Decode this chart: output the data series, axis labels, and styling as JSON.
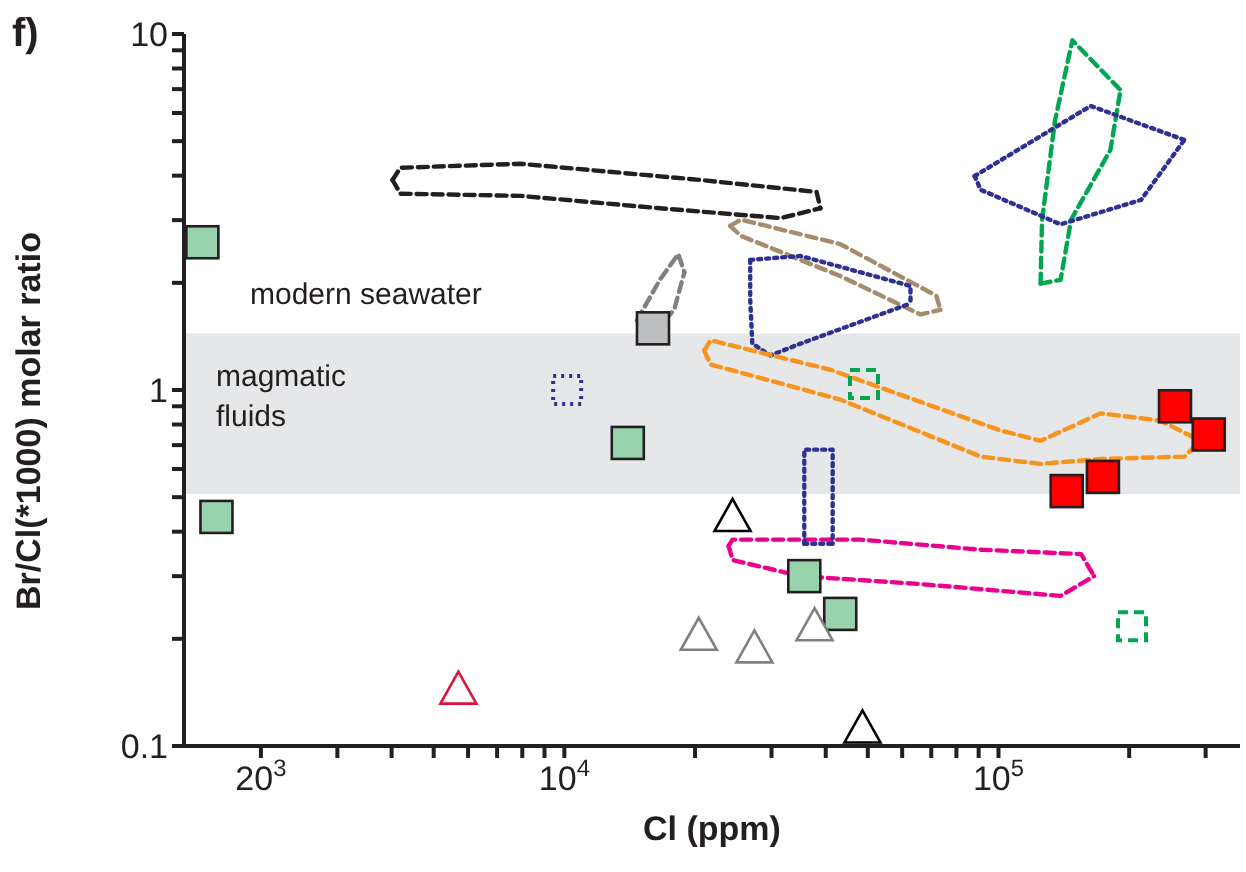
{
  "chart_data": {
    "type": "scatter",
    "title": "f)",
    "xlabel": "Cl (ppm)",
    "ylabel": "Br/Cl(*1000) molar ratio",
    "log": "xy",
    "legend": false,
    "xlim": [
      1330,
      360000
    ],
    "ylim": [
      0.1,
      10
    ],
    "xticks": [
      {
        "value": 2000,
        "label": "20$^{3}$"
      },
      {
        "value": 3000,
        "label": null
      },
      {
        "value": 4000,
        "label": null
      },
      {
        "value": 5000,
        "label": null
      },
      {
        "value": 6000,
        "label": null
      },
      {
        "value": 7000,
        "label": null
      },
      {
        "value": 8000,
        "label": null
      },
      {
        "value": 9000,
        "label": null
      },
      {
        "value": 10000,
        "label": "10$^{4}$"
      },
      {
        "value": 20000,
        "label": null
      },
      {
        "value": 30000,
        "label": null
      },
      {
        "value": 40000,
        "label": null
      },
      {
        "value": 50000,
        "label": null
      },
      {
        "value": 60000,
        "label": null
      },
      {
        "value": 70000,
        "label": null
      },
      {
        "value": 80000,
        "label": null
      },
      {
        "value": 90000,
        "label": null
      },
      {
        "value": 100000,
        "label": "10$^{5}$"
      },
      {
        "value": 200000,
        "label": null
      },
      {
        "value": 300000,
        "label": null
      }
    ],
    "yticks": [
      0.1,
      {
        "value": 0.2,
        "label": null
      },
      {
        "value": 0.3,
        "label": null
      },
      {
        "value": 0.4,
        "label": null
      },
      {
        "value": 0.5,
        "label": null
      },
      {
        "value": 0.6,
        "label": null
      },
      {
        "value": 0.7,
        "label": null
      },
      {
        "value": 0.8,
        "label": null
      },
      {
        "value": 0.9,
        "label": null
      },
      1,
      {
        "value": 2,
        "label": null
      },
      {
        "value": 3,
        "label": null
      },
      {
        "value": 4,
        "label": null
      },
      {
        "value": 5,
        "label": null
      },
      {
        "value": 6,
        "label": null
      },
      {
        "value": 7,
        "label": null
      },
      {
        "value": 8,
        "label": null
      },
      {
        "value": 9,
        "label": null
      },
      10
    ],
    "bands": [
      {
        "axis": "y",
        "from": 0.51,
        "to": 1.44,
        "label": "magmatic fluids",
        "color": "#e6e7e8"
      }
    ],
    "annotations": [
      "modern seawater"
    ],
    "series": [
      {
        "type": "line",
        "marker": "none",
        "line_style": "dashed",
        "color": "#231f20",
        "x": [
          4020,
          4190,
          7930,
          20600,
          38100,
          38900
        ],
        "values": [
          3.89,
          4.21,
          4.32,
          3.89,
          3.6,
          3.24
        ]
      },
      {
        "type": "line",
        "marker": "none",
        "line_style": "dashed",
        "color": "#231f20",
        "x": [
          4020,
          4190,
          7930,
          16600,
          31500,
          38900
        ],
        "values": [
          3.89,
          3.56,
          3.51,
          3.24,
          3.04,
          3.24
        ]
      },
      {
        "type": "line",
        "marker": "none",
        "line_style": "dashed",
        "color": "#a68b6c",
        "x": [
          24100,
          25500,
          43200,
          71900,
          73500
        ],
        "values": [
          2.89,
          3.01,
          2.57,
          1.84,
          1.68
        ]
      },
      {
        "type": "line",
        "marker": "none",
        "line_style": "dashed",
        "color": "#a68b6c",
        "x": [
          24100,
          25500,
          43200,
          66100,
          73500
        ],
        "values": [
          2.89,
          2.71,
          2.09,
          1.63,
          1.68
        ]
      },
      {
        "type": "line",
        "marker": "none",
        "line_style": "dotted",
        "color": "#2e3192",
        "x": [
          26800,
          35000,
          62700,
          62700
        ],
        "values": [
          2.32,
          2.38,
          1.96,
          1.75
        ]
      },
      {
        "type": "line",
        "marker": "none",
        "line_style": "dotted",
        "color": "#2e3192",
        "x": [
          26800,
          26800,
          27100,
          29800,
          35000,
          62700
        ],
        "values": [
          2.32,
          1.79,
          1.35,
          1.25,
          1.35,
          1.75
        ]
      },
      {
        "type": "line",
        "marker": "none",
        "line_style": "dashed",
        "color": "#808080",
        "x": [
          14700,
          16600,
          18300,
          18900
        ],
        "values": [
          1.57,
          2.04,
          2.41,
          2.14
        ]
      },
      {
        "type": "line",
        "marker": "none",
        "line_style": "dashed",
        "color": "#808080",
        "x": [
          14700,
          16600,
          17900,
          18900
        ],
        "values": [
          1.57,
          1.51,
          1.68,
          2.14
        ]
      },
      {
        "type": "line",
        "marker": "none",
        "line_style": "dashed",
        "color": "#00a651",
        "x": [
          125000,
          126000,
          135000,
          148000,
          191000
        ],
        "values": [
          1.99,
          3.01,
          5.73,
          9.6,
          6.96
        ]
      },
      {
        "type": "line",
        "marker": "none",
        "line_style": "dashed",
        "color": "#00a651",
        "x": [
          125000,
          139000,
          147000,
          181000,
          191000
        ],
        "values": [
          1.99,
          2.04,
          3.01,
          4.72,
          6.96
        ]
      },
      {
        "type": "line",
        "marker": "none",
        "line_style": "dotted",
        "color": "#2e3192",
        "x": [
          88100,
          163000,
          268000
        ],
        "values": [
          3.99,
          6.28,
          5.04
        ]
      },
      {
        "type": "line",
        "marker": "none",
        "line_style": "dotted",
        "color": "#2e3192",
        "x": [
          88100,
          91000,
          139000,
          213000,
          268000
        ],
        "values": [
          3.99,
          3.65,
          2.92,
          3.42,
          5.04
        ]
      },
      {
        "type": "line",
        "marker": "none",
        "line_style": "dashed",
        "color": "#f7941d",
        "x": [
          21000,
          21700,
          41000,
          101000,
          125000,
          172000,
          236000,
          292000
        ],
        "values": [
          1.29,
          1.38,
          1.14,
          0.77,
          0.72,
          0.86,
          0.82,
          0.72
        ]
      },
      {
        "type": "line",
        "marker": "none",
        "line_style": "dashed",
        "color": "#f7941d",
        "x": [
          21000,
          21700,
          43200,
          91000,
          125000,
          172000,
          268000,
          292000
        ],
        "values": [
          1.29,
          1.18,
          0.94,
          0.65,
          0.62,
          0.64,
          0.65,
          0.72
        ]
      },
      {
        "type": "line",
        "marker": "none",
        "line_style": "dashed",
        "color": "#ec008c",
        "x": [
          23900,
          24400,
          48100,
          91000,
          155000,
          166000
        ],
        "values": [
          0.365,
          0.38,
          0.38,
          0.356,
          0.346,
          0.3
        ]
      },
      {
        "type": "line",
        "marker": "none",
        "line_style": "dashed",
        "color": "#ec008c",
        "x": [
          23900,
          24400,
          35000,
          66100,
          139000,
          166000
        ],
        "values": [
          0.365,
          0.333,
          0.3,
          0.285,
          0.264,
          0.3
        ]
      },
      {
        "type": "line",
        "marker": "none",
        "line_style": "dotted",
        "color": "#2e3192",
        "x": [
          35700,
          35700,
          41500,
          41500
        ],
        "values": [
          0.37,
          0.68,
          0.68,
          0.37
        ]
      },
      {
        "type": "line",
        "marker": "none",
        "line_style": "dotted",
        "color": "#2e3192",
        "x": [
          35700,
          41500
        ],
        "values": [
          0.37,
          0.37
        ]
      },
      {
        "type": "scatter",
        "marker": "square",
        "line_style": "dotted",
        "color": "#2e3192",
        "x": [
          10150
        ],
        "values": [
          1.0
        ]
      },
      {
        "type": "scatter",
        "marker": "square",
        "line_style": "dashed",
        "color": "#00a651",
        "x": [
          49000,
          203000
        ],
        "values": [
          1.04,
          0.217
        ]
      },
      {
        "type": "scatter",
        "marker": "square",
        "color": "#99d3ad",
        "x": [
          1466,
          1580,
          14000,
          35700,
          43200
        ],
        "values": [
          2.6,
          0.44,
          0.71,
          0.3,
          0.235
        ]
      },
      {
        "type": "scatter",
        "marker": "square",
        "color": "#bcbec0",
        "x": [
          16000
        ],
        "values": [
          1.49
        ]
      },
      {
        "type": "scatter",
        "marker": "square",
        "color": "#ff0000",
        "x": [
          143600,
          174000,
          255000,
          305000
        ],
        "values": [
          0.52,
          0.57,
          0.9,
          0.75
        ]
      },
      {
        "type": "scatter",
        "marker": "triangle",
        "color": "#000000",
        "x": [
          24400,
          48600
        ],
        "values": [
          0.44,
          0.112
        ]
      },
      {
        "type": "scatter",
        "marker": "triangle",
        "color": "#808080",
        "x": [
          20400,
          27400,
          37700
        ],
        "values": [
          0.204,
          0.188,
          0.217
        ]
      },
      {
        "type": "scatter",
        "marker": "triangle",
        "color": "#e0103a",
        "x": [
          5700
        ],
        "values": [
          0.144
        ]
      }
    ]
  }
}
